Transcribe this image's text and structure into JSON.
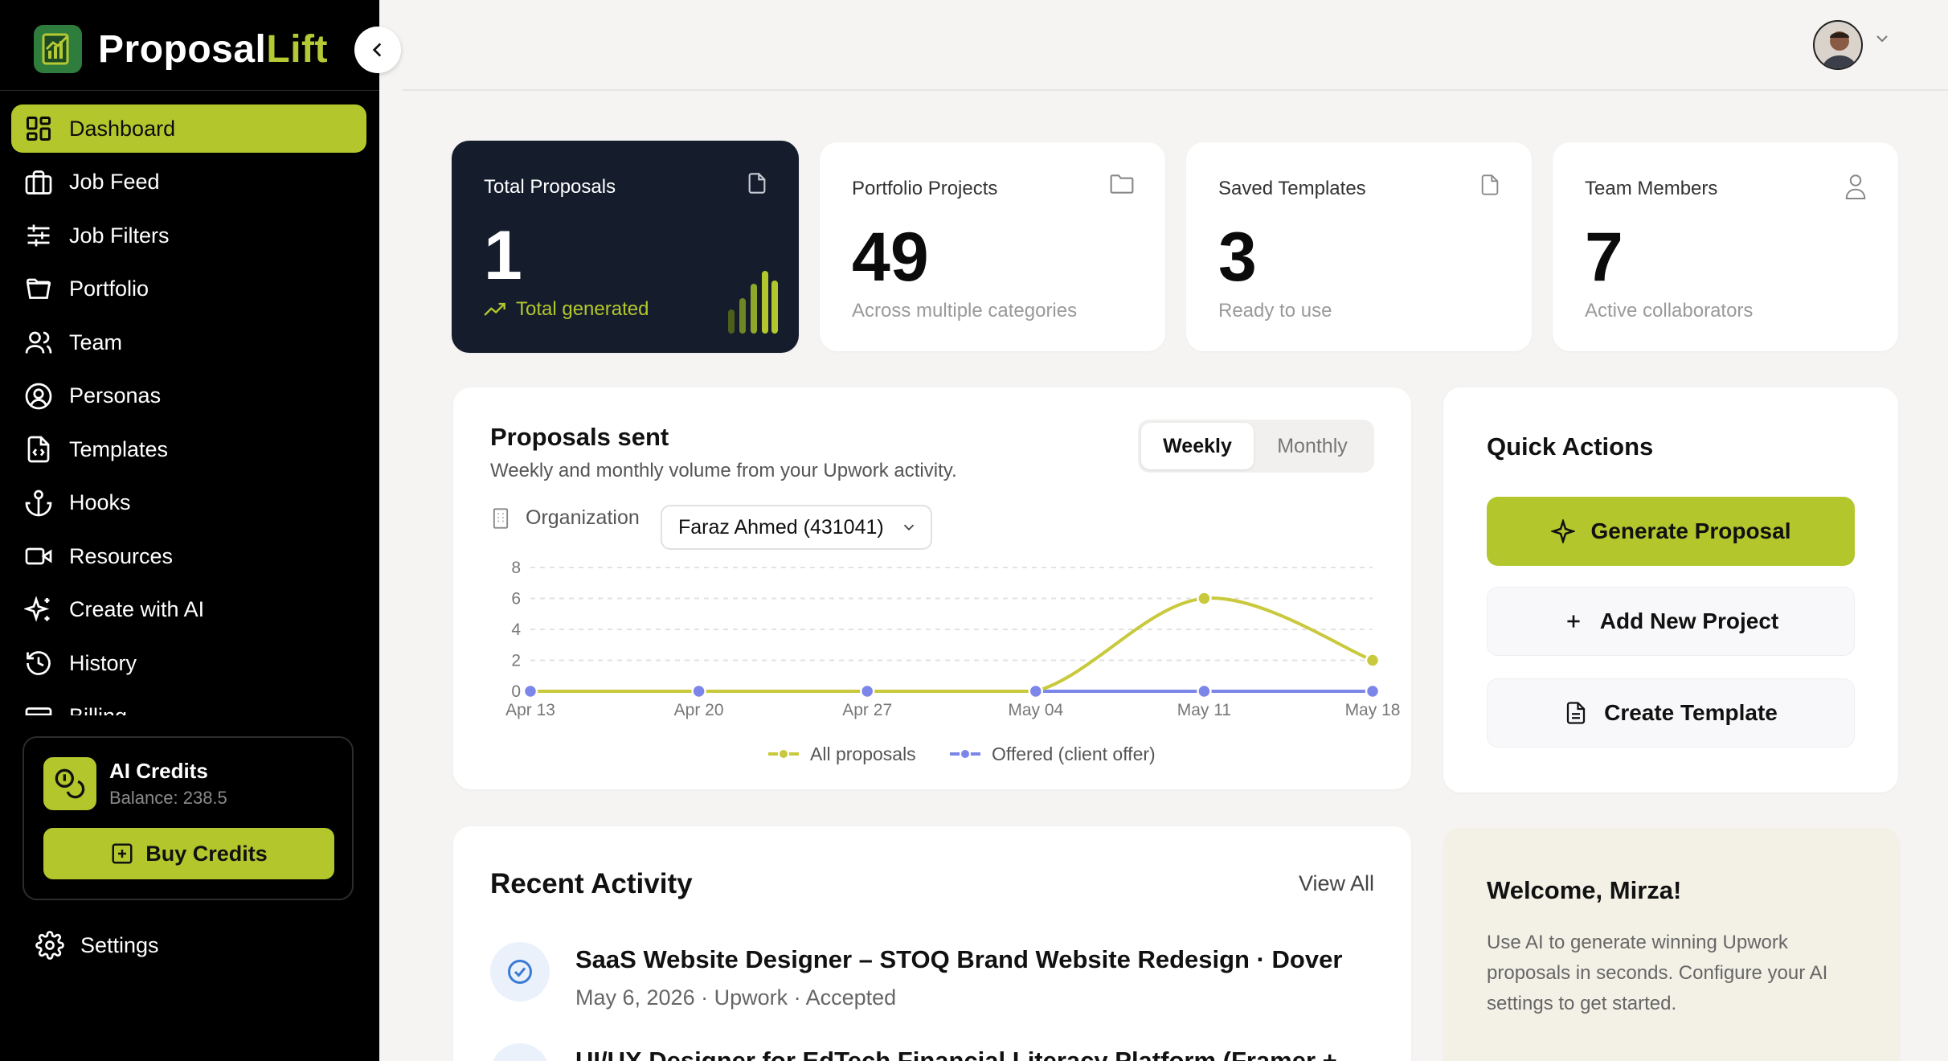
{
  "brand": {
    "name_main": "Proposal",
    "name_accent": "Lift"
  },
  "sidebar": {
    "items": [
      {
        "label": "Dashboard",
        "icon": "dashboard-icon"
      },
      {
        "label": "Job Feed",
        "icon": "briefcase-icon"
      },
      {
        "label": "Job Filters",
        "icon": "sliders-icon"
      },
      {
        "label": "Portfolio",
        "icon": "folder-open-icon"
      },
      {
        "label": "Team",
        "icon": "users-icon"
      },
      {
        "label": "Personas",
        "icon": "user-circle-icon"
      },
      {
        "label": "Templates",
        "icon": "file-code-icon"
      },
      {
        "label": "Hooks",
        "icon": "anchor-icon"
      },
      {
        "label": "Resources",
        "icon": "video-icon"
      },
      {
        "label": "Create with AI",
        "icon": "sparkles-icon"
      },
      {
        "label": "History",
        "icon": "history-icon"
      },
      {
        "label": "Billing",
        "icon": "credit-card-icon"
      }
    ],
    "credits": {
      "title": "AI Credits",
      "balance": "Balance: 238.5",
      "button": "Buy Credits"
    },
    "settings": "Settings"
  },
  "stats": [
    {
      "label": "Total Proposals",
      "value": "1",
      "sub": "Total generated",
      "icon": "file-icon"
    },
    {
      "label": "Portfolio Projects",
      "value": "49",
      "sub": "Across multiple categories",
      "icon": "folder-icon"
    },
    {
      "label": "Saved Templates",
      "value": "3",
      "sub": "Ready to use",
      "icon": "file-icon"
    },
    {
      "label": "Team Members",
      "value": "7",
      "sub": "Active collaborators",
      "icon": "user-icon"
    }
  ],
  "proposals_chart": {
    "title": "Proposals sent",
    "subtitle": "Weekly and monthly volume from your Upwork activity.",
    "toggle": {
      "weekly": "Weekly",
      "monthly": "Monthly",
      "selected": "Weekly"
    },
    "org_label": "Organization",
    "org_value": "Faraz Ahmed (431041)"
  },
  "chart_data": {
    "type": "line",
    "x": [
      "Apr 13",
      "Apr 20",
      "Apr 27",
      "May 04",
      "May 11",
      "May 18"
    ],
    "series": [
      {
        "name": "All proposals",
        "values": [
          0,
          0,
          0,
          0,
          6,
          2
        ],
        "color": "#c9c93d"
      },
      {
        "name": "Offered (client offer)",
        "values": [
          0,
          0,
          0,
          0,
          0,
          0
        ],
        "color": "#7b86e8"
      }
    ],
    "yticks": [
      "0",
      "2",
      "4",
      "6",
      "8"
    ],
    "ylim": [
      0,
      8
    ],
    "grid": true,
    "legend": "bottom-center"
  },
  "quick_actions": {
    "title": "Quick Actions",
    "generate": "Generate Proposal",
    "add_project": "Add New Project",
    "create_template": "Create Template"
  },
  "recent_activity": {
    "title": "Recent Activity",
    "view_all": "View All",
    "items": [
      {
        "title": "SaaS Website Designer – STOQ Brand Website Redesign · Dover",
        "meta": "May 6, 2026 · Upwork · Accepted"
      },
      {
        "title": "UI/UX Designer for EdTech Financial Literacy Platform (Framer +",
        "meta": ""
      }
    ]
  },
  "welcome": {
    "title": "Welcome, Mirza!",
    "text": "Use AI to generate winning Upwork proposals in seconds. Configure your AI settings to get started."
  },
  "colors": {
    "accent": "#b3c72d",
    "sidebar_bg": "#000000",
    "dark_card": "#151d2d",
    "series_all": "#c9c93d",
    "series_offered": "#7b86e8"
  }
}
